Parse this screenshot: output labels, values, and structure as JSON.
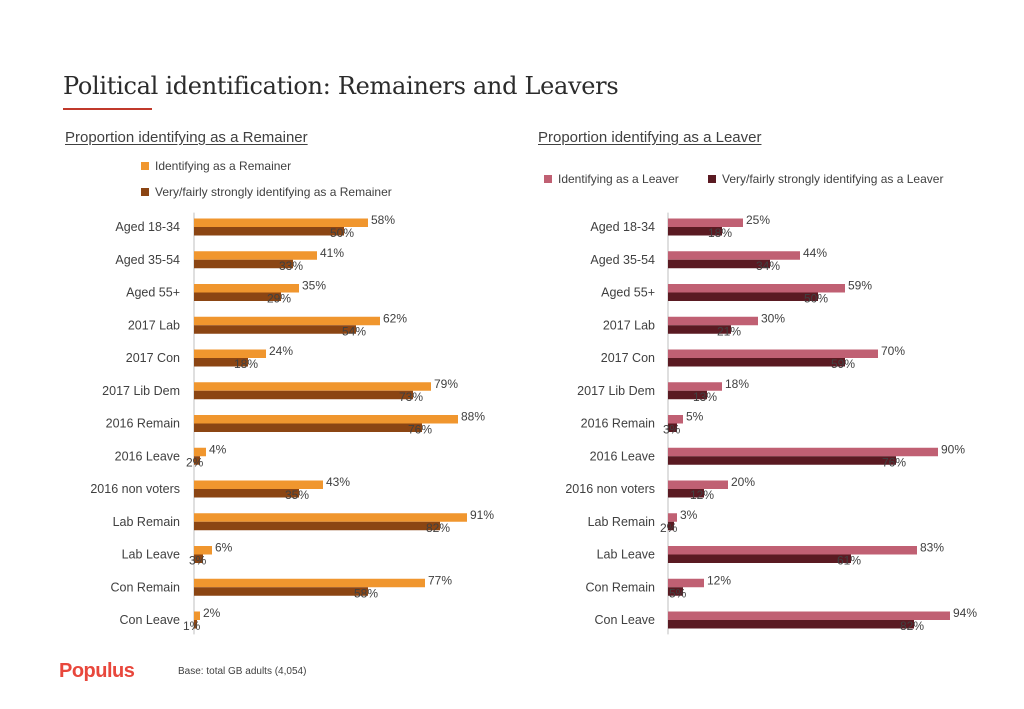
{
  "page": {
    "title": "Political identification: Remainers and Leavers"
  },
  "footer": {
    "logo": "Populus",
    "base": "Base: total GB adults (4,054)"
  },
  "chart_data": [
    {
      "type": "bar",
      "orientation": "horizontal",
      "title": "Proportion identifying as a Remainer",
      "legend_position": "top",
      "categories": [
        "Aged 18-34",
        "Aged 35-54",
        "Aged 55+",
        "2017 Lab",
        "2017 Con",
        "2017 Lib Dem",
        "2016 Remain",
        "2016 Leave",
        "2016 non voters",
        "Lab Remain",
        "Lab Leave",
        "Con Remain",
        "Con Leave"
      ],
      "series": [
        {
          "name": "Identifying as a Remainer",
          "color": "#f0962e",
          "values": [
            58,
            41,
            35,
            62,
            24,
            79,
            88,
            4,
            43,
            91,
            6,
            77,
            2
          ],
          "labels": [
            "58%",
            "41%",
            "35%",
            "62%",
            "24%",
            "79%",
            "88%",
            "4%",
            "43%",
            "91%",
            "6%",
            "77%",
            "2%"
          ]
        },
        {
          "name": "Very/fairly strongly identifying as a Remainer",
          "color": "#8b4513",
          "values": [
            50,
            33,
            29,
            54,
            18,
            73,
            76,
            2,
            35,
            82,
            3,
            58,
            1
          ],
          "labels": [
            "50%",
            "33%",
            "29%",
            "54%",
            "18%",
            "73%",
            "76%",
            "2%",
            "35%",
            "82%",
            "3%",
            "58%",
            "1%"
          ]
        }
      ]
    },
    {
      "type": "bar",
      "orientation": "horizontal",
      "title": "Proportion identifying as a Leaver",
      "legend_position": "top",
      "categories": [
        "Aged 18-34",
        "Aged 35-54",
        "Aged 55+",
        "2017 Lab",
        "2017 Con",
        "2017 Lib Dem",
        "2016 Remain",
        "2016 Leave",
        "2016 non voters",
        "Lab Remain",
        "Lab Leave",
        "Con Remain",
        "Con Leave"
      ],
      "series": [
        {
          "name": "Identifying as a Leaver",
          "color": "#c06073",
          "values": [
            25,
            44,
            59,
            30,
            70,
            18,
            5,
            90,
            20,
            3,
            83,
            12,
            94
          ],
          "labels": [
            "25%",
            "44%",
            "59%",
            "30%",
            "70%",
            "18%",
            "5%",
            "90%",
            "20%",
            "3%",
            "83%",
            "12%",
            "94%"
          ]
        },
        {
          "name": "Very/fairly strongly identifying as a Leaver",
          "color": "#5a1a22",
          "values": [
            18,
            34,
            50,
            21,
            59,
            13,
            3,
            76,
            12,
            2,
            61,
            5,
            82
          ],
          "labels": [
            "18%",
            "34%",
            "50%",
            "21%",
            "59%",
            "13%",
            "3%",
            "76%",
            "12%",
            "2%",
            "61%",
            "5%",
            "82%"
          ]
        }
      ]
    }
  ]
}
